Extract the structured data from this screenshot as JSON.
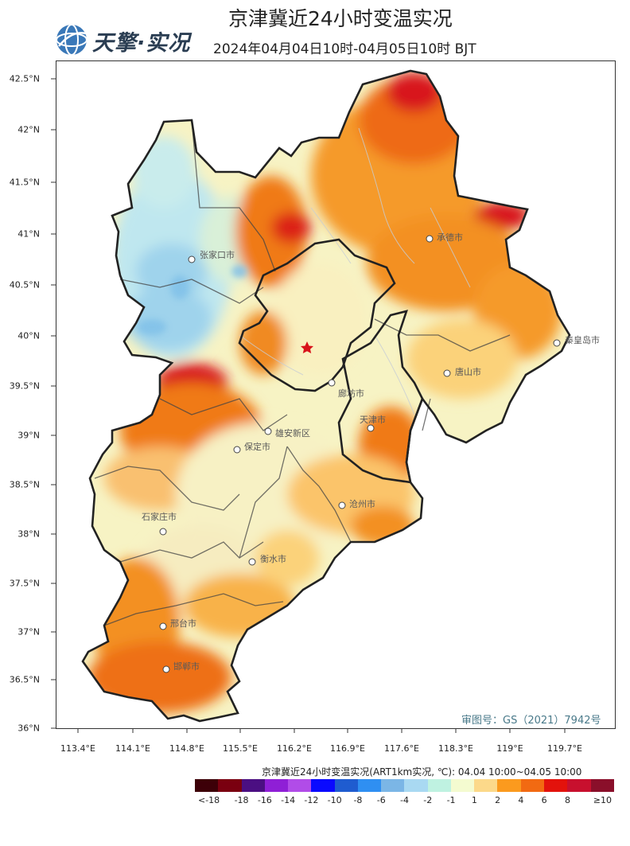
{
  "header": {
    "logo_text": "天擎·实况",
    "title": "京津冀近24小时变温实况",
    "subtitle": "2024年04月04日10时-04月05日10时 BJT"
  },
  "axes": {
    "lat_labels": [
      "42.5°N",
      "42°N",
      "41.5°N",
      "41°N",
      "40.5°N",
      "40°N",
      "39.5°N",
      "39°N",
      "38.5°N",
      "38°N",
      "37.5°N",
      "37°N",
      "36.5°N",
      "36°N"
    ],
    "lon_labels": [
      "113.4°E",
      "114.1°E",
      "114.8°E",
      "115.5°E",
      "116.2°E",
      "116.9°E",
      "117.6°E",
      "118.3°E",
      "119°E",
      "119.7°E"
    ]
  },
  "cities": [
    {
      "name": "张家口市"
    },
    {
      "name": "承德市"
    },
    {
      "name": "秦皇岛市"
    },
    {
      "name": "唐山市"
    },
    {
      "name": "廊坊市"
    },
    {
      "name": "天津市"
    },
    {
      "name": "雄安新区"
    },
    {
      "name": "保定市"
    },
    {
      "name": "沧州市"
    },
    {
      "name": "石家庄市"
    },
    {
      "name": "衡水市"
    },
    {
      "name": "邢台市"
    },
    {
      "name": "邯郸市"
    }
  ],
  "watermark": "审图号：GS（2021）7942号",
  "legend": {
    "title": "京津冀近24小时变温实况(ART1km实况, ℃): 04.04 10:00~04.05 10:00",
    "colors": [
      "#3d0008",
      "#7a0010",
      "#4b0f82",
      "#8f1fd6",
      "#b14ce8",
      "#0a0aff",
      "#1f5cd0",
      "#2f8ff2",
      "#7bb6e6",
      "#a9d9f2",
      "#bff2e1",
      "#f4fbd0",
      "#fcd98a",
      "#fb9a1e",
      "#f26a12",
      "#e3120c",
      "#c8102e",
      "#8a0f2a"
    ],
    "ticks": [
      "<-18",
      "-18",
      "-16",
      "-14",
      "-12",
      "-10",
      "-8",
      "-6",
      "-4",
      "-2",
      "-1",
      "1",
      "2",
      "4",
      "6",
      "8",
      "≥10"
    ]
  }
}
